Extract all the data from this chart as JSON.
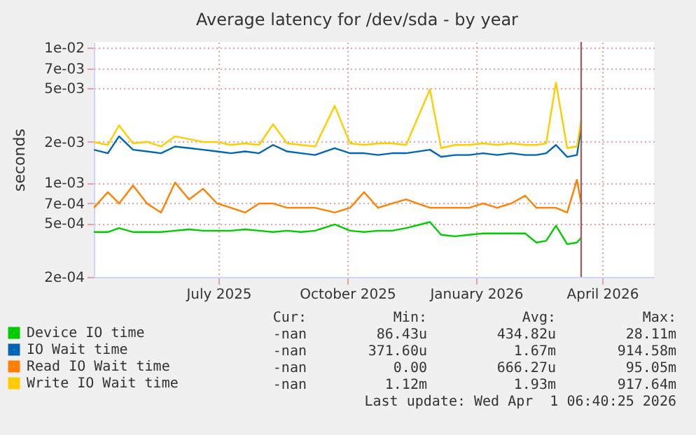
{
  "chart_data": {
    "type": "line",
    "title": "Average latency for /dev/sda - by year",
    "ylabel": "seconds",
    "log": "y",
    "grid": true,
    "legend": "bottom",
    "line_style": "solid",
    "marker": "none",
    "x": [
      "2025-04-18",
      "2025-04-28",
      "2025-05-06",
      "2025-05-16",
      "2025-05-26",
      "2025-06-05",
      "2025-06-15",
      "2025-06-25",
      "2025-07-05",
      "2025-07-15",
      "2025-07-25",
      "2025-08-04",
      "2025-08-14",
      "2025-08-24",
      "2025-09-03",
      "2025-09-13",
      "2025-09-23",
      "2025-10-07",
      "2025-10-18",
      "2025-10-28",
      "2025-11-07",
      "2025-11-17",
      "2025-11-27",
      "2025-12-14",
      "2025-12-22",
      "2026-01-01",
      "2026-01-11",
      "2026-01-21",
      "2026-01-31",
      "2026-02-10",
      "2026-02-20",
      "2026-02-28",
      "2026-03-07",
      "2026-03-14",
      "2026-03-22",
      "2026-03-29",
      "2026-04-01"
    ],
    "xlim": [
      "2025-04-18",
      "2026-05-23"
    ],
    "xticks": [
      {
        "value": "2025-07-16",
        "label": "July 2025"
      },
      {
        "value": "2025-10-16",
        "label": "October 2025"
      },
      {
        "value": "2026-01-16",
        "label": "January 2026"
      },
      {
        "value": "2026-04-16",
        "label": "April 2026"
      }
    ],
    "ylim": [
      0.0002,
      0.011
    ],
    "yticks": [
      {
        "value": 0.0002,
        "label": "2e-04"
      },
      {
        "value": 0.0005,
        "label": "5e-04"
      },
      {
        "value": 0.0007,
        "label": "7e-04"
      },
      {
        "value": 0.001,
        "label": "1e-03"
      },
      {
        "value": 0.002,
        "label": "2e-03"
      },
      {
        "value": 0.005,
        "label": "5e-03"
      },
      {
        "value": 0.007,
        "label": "7e-03"
      },
      {
        "value": 0.01,
        "label": "1e-02"
      }
    ],
    "series": [
      {
        "name": "Device IO time",
        "color": "#00cc00",
        "values": [
          0.00043,
          0.00043,
          0.00046,
          0.00043,
          0.00043,
          0.00043,
          0.00044,
          0.00045,
          0.00044,
          0.00044,
          0.00044,
          0.00045,
          0.00044,
          0.00043,
          0.00044,
          0.00043,
          0.00044,
          0.00049,
          0.00044,
          0.00043,
          0.00044,
          0.00044,
          0.00046,
          0.00051,
          0.00041,
          0.0004,
          0.00041,
          0.00042,
          0.00042,
          0.00042,
          0.00042,
          0.00036,
          0.00037,
          0.00048,
          0.00035,
          0.00036,
          0.00039
        ]
      },
      {
        "name": "IO Wait time",
        "color": "#0066b3",
        "values": [
          0.00175,
          0.00165,
          0.0022,
          0.00175,
          0.0017,
          0.00165,
          0.00185,
          0.0018,
          0.00175,
          0.0017,
          0.00165,
          0.0017,
          0.00165,
          0.0019,
          0.0017,
          0.00165,
          0.0016,
          0.0018,
          0.00165,
          0.00165,
          0.0016,
          0.00165,
          0.00165,
          0.00175,
          0.00155,
          0.0016,
          0.0016,
          0.00165,
          0.0016,
          0.00165,
          0.0016,
          0.0016,
          0.00165,
          0.0019,
          0.00155,
          0.0016,
          0.0026
        ]
      },
      {
        "name": "Read IO Wait time",
        "color": "#ff8000",
        "values": [
          0.00065,
          0.00085,
          0.0007,
          0.00095,
          0.0007,
          0.0006,
          0.001,
          0.00075,
          0.0009,
          0.0007,
          0.00065,
          0.0006,
          0.0007,
          0.0007,
          0.00065,
          0.00065,
          0.00065,
          0.0006,
          0.00065,
          0.00085,
          0.00065,
          0.0007,
          0.00075,
          0.00065,
          0.00065,
          0.00065,
          0.00065,
          0.0007,
          0.00065,
          0.0007,
          0.0008,
          0.00065,
          0.00065,
          0.00065,
          0.0006,
          0.00105,
          0.0007
        ]
      },
      {
        "name": "Write IO Wait time",
        "color": "#ffcc00",
        "values": [
          0.002,
          0.0019,
          0.00265,
          0.00195,
          0.002,
          0.00185,
          0.0022,
          0.0021,
          0.002,
          0.002,
          0.0019,
          0.00195,
          0.0019,
          0.0027,
          0.00195,
          0.0019,
          0.00185,
          0.0037,
          0.00195,
          0.0019,
          0.00195,
          0.00195,
          0.0019,
          0.0049,
          0.0018,
          0.0019,
          0.0019,
          0.00195,
          0.0019,
          0.00195,
          0.0019,
          0.0019,
          0.00195,
          0.0055,
          0.0018,
          0.00185,
          0.0029
        ]
      }
    ],
    "ref_lines": [
      {
        "axis": "x",
        "value": "2026-04-01",
        "color": "#996666"
      }
    ],
    "annotations": [
      "Cur:",
      "Min:",
      "Avg:",
      "Max:",
      "-nan",
      "86.43u",
      "434.82u",
      "28.11m",
      "-nan",
      "371.60u",
      "1.67m",
      "914.58m",
      "-nan",
      "0.00",
      "666.27u",
      "95.05m",
      "-nan",
      "1.12m",
      "1.93m",
      "917.64m",
      "Last update: Wed Apr  1 06:40:25 2026"
    ]
  }
}
